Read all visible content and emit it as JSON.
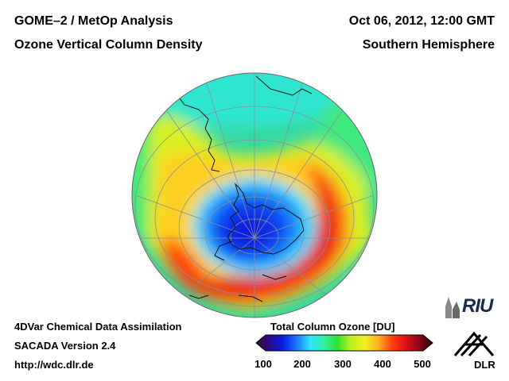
{
  "header": {
    "left_line1": "GOME–2 / MetOp Analysis",
    "left_line2": "Ozone Vertical Column Density",
    "right_line1": "Oct 06, 2012, 12:00 GMT",
    "right_line2": "Southern Hemisphere"
  },
  "footer": {
    "line1": "4DVar Chemical Data Assimilation",
    "line2": "SACADA Version 2.4",
    "line3": "http://wdc.dlr.de"
  },
  "colorbar": {
    "title": "Total Column Ozone [DU]",
    "ticks": [
      "100",
      "200",
      "300",
      "400",
      "500"
    ],
    "colors": [
      "#3a0a2e",
      "#2a0a8a",
      "#0a1fe8",
      "#1a78ff",
      "#2ee6ff",
      "#33f0a0",
      "#30e030",
      "#c0f020",
      "#f0f020",
      "#ffb020",
      "#ff4010",
      "#e0101a",
      "#8a0816",
      "#2a0508"
    ]
  },
  "logos": {
    "riu": "RIU",
    "dlr": "DLR"
  }
}
